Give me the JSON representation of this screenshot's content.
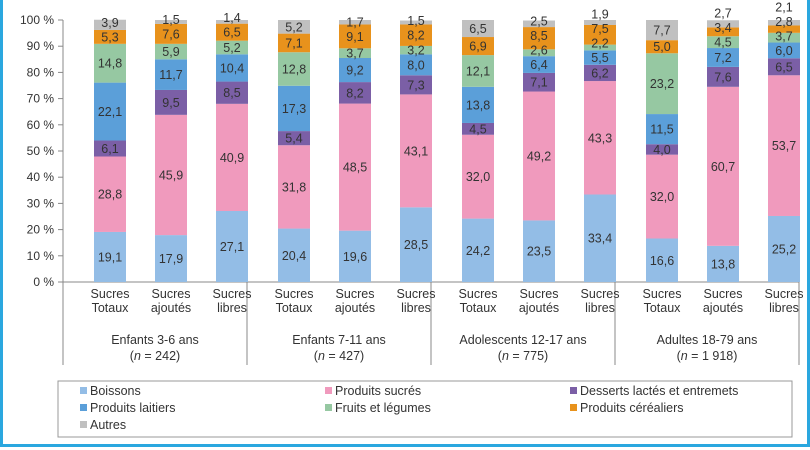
{
  "chart_data": {
    "type": "bar",
    "stacked": true,
    "ylim": [
      0,
      100
    ],
    "yticks": [
      "0 %",
      "10 %",
      "20 %",
      "30 %",
      "40 %",
      "50 %",
      "60 %",
      "70 %",
      "80 %",
      "90 %",
      "100 %"
    ],
    "grid": false,
    "legend_placement": "bottom",
    "bar_labels": [
      [
        "Sucres",
        "Totaux"
      ],
      [
        "Sucres",
        "ajoutés"
      ],
      [
        "Sucres",
        "libres"
      ]
    ],
    "groups": [
      {
        "label": "Enfants 3-6 ans",
        "n_prefix": "(",
        "n_var": "n",
        "n_value": " = 242)"
      },
      {
        "label": "Enfants 7-11 ans",
        "n_prefix": "(",
        "n_var": "n",
        "n_value": " = 427)"
      },
      {
        "label": "Adolescents 12-17 ans",
        "n_prefix": "(",
        "n_var": "n",
        "n_value": " = 775)"
      },
      {
        "label": "Adultes 18-79 ans",
        "n_prefix": "(",
        "n_var": "n",
        "n_value": " = 1 918)"
      }
    ],
    "series": [
      {
        "name": "Boissons",
        "color": "#93bde6",
        "values": [
          19.1,
          17.9,
          27.1,
          20.4,
          19.6,
          28.5,
          24.2,
          23.5,
          33.4,
          16.6,
          13.8,
          25.2
        ]
      },
      {
        "name": "Produits sucrés",
        "color": "#f09abd",
        "values": [
          28.8,
          45.9,
          40.9,
          31.8,
          48.5,
          43.1,
          32.0,
          49.2,
          43.3,
          32.0,
          60.7,
          53.7
        ]
      },
      {
        "name": "Desserts lactés et entremets",
        "color": "#7b5fa6",
        "values": [
          6.1,
          9.5,
          8.5,
          5.4,
          8.2,
          7.3,
          4.5,
          7.1,
          6.2,
          4.0,
          7.6,
          6.5
        ]
      },
      {
        "name": "Produits laitiers",
        "color": "#5b9fd9",
        "values": [
          22.1,
          11.7,
          10.4,
          17.3,
          9.2,
          8.0,
          13.8,
          6.4,
          5.5,
          11.5,
          7.2,
          6.0
        ]
      },
      {
        "name": "Fruits et légumes",
        "color": "#96c8a2",
        "values": [
          14.8,
          5.9,
          5.2,
          12.8,
          3.7,
          3.2,
          12.1,
          2.6,
          2.2,
          23.2,
          4.5,
          3.7
        ]
      },
      {
        "name": "Produits céréaliers",
        "color": "#e8921c",
        "values": [
          5.3,
          7.6,
          6.5,
          7.1,
          9.1,
          8.2,
          6.9,
          8.5,
          7.5,
          5.0,
          3.4,
          2.8
        ]
      },
      {
        "name": "Autres",
        "color": "#c0c0c0",
        "values": [
          3.9,
          1.5,
          1.4,
          5.2,
          1.7,
          1.5,
          6.5,
          2.5,
          1.9,
          7.7,
          2.7,
          2.1
        ]
      }
    ]
  }
}
